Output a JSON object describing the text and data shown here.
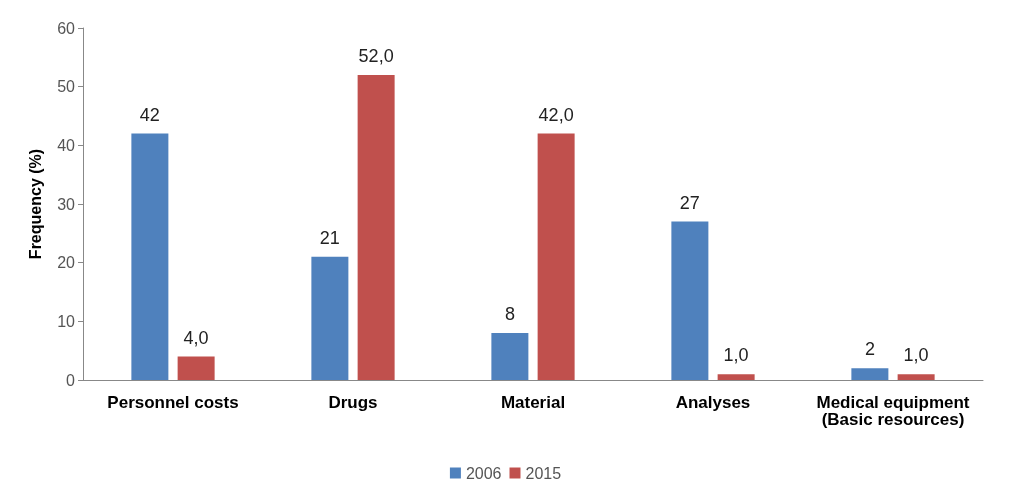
{
  "chart_data": {
    "type": "bar",
    "ylabel": "Frequency (%)",
    "categories": [
      "Personnel costs",
      "Drugs",
      "Material",
      "Analyses",
      "Medical equipment\n(Basic resources)"
    ],
    "series": [
      {
        "name": "2006",
        "color": "#4f81bd",
        "values": [
          42,
          21,
          8,
          27,
          2
        ],
        "value_labels": [
          "42",
          "21",
          "8",
          "27",
          "2"
        ]
      },
      {
        "name": "2015",
        "color": "#c0504d",
        "values": [
          4,
          52,
          42,
          1,
          1
        ],
        "value_labels": [
          "4,0",
          "52,0",
          "42,0",
          "1,0",
          "1,0"
        ]
      }
    ],
    "ylim": [
      0,
      60
    ],
    "yticks": [
      0,
      10,
      20,
      30,
      40,
      50,
      60
    ],
    "grid": false,
    "legend": "bottom"
  }
}
